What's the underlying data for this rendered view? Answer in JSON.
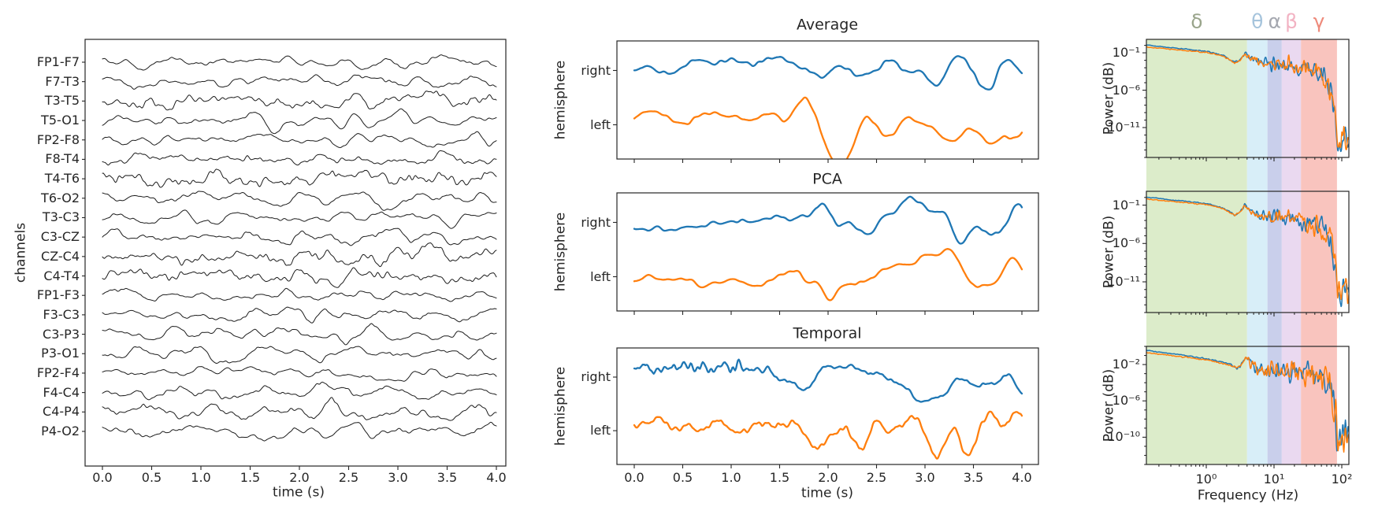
{
  "figure": {
    "bg": "#ffffff",
    "spine_color": "#262626",
    "text_color": "#262626"
  },
  "bands": [
    {
      "name": "delta",
      "symbol": "δ",
      "hz": [
        0.13,
        4
      ],
      "fill": "#dcecca",
      "label_color": "#9aa58c"
    },
    {
      "name": "theta",
      "symbol": "θ",
      "hz": [
        4,
        8
      ],
      "fill": "#d8eef8",
      "label_color": "#a6c4dc"
    },
    {
      "name": "alpha",
      "symbol": "α",
      "hz": [
        8,
        13
      ],
      "fill": "#c9cfeb",
      "label_color": "#a5a8b0"
    },
    {
      "name": "beta",
      "symbol": "β",
      "hz": [
        13,
        25
      ],
      "fill": "#ead9f0",
      "label_color": "#f2b3c3"
    },
    {
      "name": "gamma",
      "symbol": "γ",
      "hz": [
        25,
        85
      ],
      "fill": "#f9c4be",
      "label_color": "#ee8a7b"
    }
  ],
  "chart_data": [
    {
      "id": "eeg-channels",
      "type": "line",
      "xlabel": "time (s)",
      "ylabel": "channels",
      "x_range_s": [
        0,
        4
      ],
      "xticks": [
        "0.0",
        "0.5",
        "1.0",
        "1.5",
        "2.0",
        "2.5",
        "3.0",
        "3.5",
        "4.0"
      ],
      "line_color": "#1c1c1c",
      "default_env": [
        [
          0,
          0.85
        ],
        [
          1.4,
          0.95
        ],
        [
          1.9,
          1.2
        ],
        [
          2.7,
          1.25
        ],
        [
          3.3,
          1.05
        ],
        [
          4,
          0.95
        ]
      ],
      "channels": [
        {
          "label": "FP1-F7",
          "seed": 1,
          "amp": 3.7,
          "hf": 0.8
        },
        {
          "label": "F7-T3",
          "seed": 2,
          "amp": 3.8,
          "hf": 0.9
        },
        {
          "label": "T3-T5",
          "seed": 3,
          "amp": 4.9,
          "hf": 2.1
        },
        {
          "label": "T5-O1",
          "seed": 4,
          "amp": 4.7,
          "hf": 0.8
        },
        {
          "label": "FP2-F8",
          "seed": 5,
          "amp": 3.9,
          "hf": 0.8
        },
        {
          "label": "F8-T4",
          "seed": 6,
          "amp": 3.6,
          "hf": 1.3
        },
        {
          "label": "T4-T6",
          "seed": 7,
          "amp": 4.6,
          "hf": 2.3
        },
        {
          "label": "T6-O2",
          "seed": 8,
          "amp": 4.8,
          "hf": 0.9
        },
        {
          "label": "T3-C3",
          "seed": 9,
          "amp": 4.4,
          "hf": 0.9
        },
        {
          "label": "C3-CZ",
          "seed": 10,
          "amp": 4.4,
          "hf": 1.0
        },
        {
          "label": "CZ-C4",
          "seed": 11,
          "amp": 4.5,
          "hf": 2.0
        },
        {
          "label": "C4-T4",
          "seed": 12,
          "amp": 4.2,
          "hf": 1.9
        },
        {
          "label": "FP1-F3",
          "seed": 13,
          "amp": 3.7,
          "hf": 0.8
        },
        {
          "label": "F3-C3",
          "seed": 14,
          "amp": 4.1,
          "hf": 0.9
        },
        {
          "label": "C3-P3",
          "seed": 15,
          "amp": 4.5,
          "hf": 0.9
        },
        {
          "label": "P3-O1",
          "seed": 16,
          "amp": 5.3,
          "hf": 0.9
        },
        {
          "label": "FP2-F4",
          "seed": 17,
          "amp": 3.8,
          "hf": 0.9
        },
        {
          "label": "F4-C4",
          "seed": 18,
          "amp": 4.3,
          "hf": 1.0
        },
        {
          "label": "C4-P4",
          "seed": 19,
          "amp": 5.0,
          "hf": 1.4
        },
        {
          "label": "P4-O2",
          "seed": 20,
          "amp": 4.7,
          "hf": 0.9
        }
      ]
    },
    {
      "id": "average",
      "type": "line",
      "title": "Average",
      "ylabel": "hemisphere",
      "x_range_s": [
        0,
        4
      ],
      "yticks": [
        "right",
        "left"
      ],
      "series": [
        {
          "name": "right",
          "color": "#1f77b4",
          "seed": 31,
          "w": 16,
          "amp": 13,
          "hfamp": 1.6,
          "hfw": 4,
          "env": [
            [
              0,
              0.38
            ],
            [
              1.35,
              0.38
            ],
            [
              1.65,
              1
            ],
            [
              4,
              1
            ]
          ],
          "dc": [
            [
              0,
              -11
            ],
            [
              1.35,
              -9
            ],
            [
              1.7,
              3
            ],
            [
              4,
              3
            ]
          ]
        },
        {
          "name": "left",
          "color": "#ff7f0e",
          "seed": 52,
          "w": 16,
          "amp": 16,
          "hfamp": 1.4,
          "hfw": 4,
          "env": [
            [
              0,
              0.34
            ],
            [
              1.4,
              0.38
            ],
            [
              1.75,
              1.05
            ],
            [
              4,
              1.05
            ]
          ],
          "dc": [
            [
              0,
              -9
            ],
            [
              1.45,
              -7
            ],
            [
              1.8,
              4
            ],
            [
              4,
              5
            ]
          ]
        }
      ]
    },
    {
      "id": "pca",
      "type": "line",
      "title": "PCA",
      "ylabel": "hemisphere",
      "x_range_s": [
        0,
        4
      ],
      "yticks": [
        "right",
        "left"
      ],
      "series": [
        {
          "name": "right",
          "color": "#1f77b4",
          "seed": 33,
          "w": 15,
          "amp": 14,
          "hfamp": 1.2,
          "hfw": 4,
          "env": [
            [
              0,
              0.22
            ],
            [
              0.9,
              0.3
            ],
            [
              1.5,
              0.6
            ],
            [
              2.1,
              1
            ],
            [
              4,
              1.08
            ]
          ],
          "dc": [
            [
              0,
              5
            ],
            [
              1.5,
              2
            ],
            [
              2.2,
              -5
            ],
            [
              4,
              -7
            ]
          ]
        },
        {
          "name": "left",
          "color": "#ff7f0e",
          "seed": 54,
          "w": 15,
          "amp": 15,
          "hfamp": 1.2,
          "hfw": 4,
          "env": [
            [
              0,
              0.22
            ],
            [
              0.9,
              0.3
            ],
            [
              1.5,
              0.62
            ],
            [
              2.1,
              1
            ],
            [
              4,
              1.08
            ]
          ],
          "dc": [
            [
              0,
              6
            ],
            [
              1.5,
              3
            ],
            [
              2.2,
              -4
            ],
            [
              4,
              -6
            ]
          ]
        }
      ]
    },
    {
      "id": "temporal",
      "type": "line",
      "title": "Temporal",
      "ylabel": "hemisphere",
      "xlabel": "time (s)",
      "x_range_s": [
        0,
        4
      ],
      "xticks": [
        "0.0",
        "0.5",
        "1.0",
        "1.5",
        "2.0",
        "2.5",
        "3.0",
        "3.5",
        "4.0"
      ],
      "yticks": [
        "right",
        "left"
      ],
      "series": [
        {
          "name": "right",
          "color": "#1f77b4",
          "seed": 37,
          "w": 15,
          "amp": 13,
          "hfamp": 4,
          "hfw": 3,
          "env": [
            [
              0,
              0.12
            ],
            [
              1.35,
              0.12
            ],
            [
              1.65,
              1
            ],
            [
              4,
              1
            ]
          ],
          "hf_env": [
            [
              0,
              1
            ],
            [
              1.35,
              1
            ],
            [
              1.6,
              0.25
            ],
            [
              4,
              0.25
            ]
          ],
          "dc": [
            [
              0,
              -12
            ],
            [
              1.35,
              -12
            ],
            [
              1.7,
              4
            ],
            [
              4,
              4
            ]
          ]
        },
        {
          "name": "left",
          "color": "#ff7f0e",
          "seed": 58,
          "w": 15,
          "amp": 15,
          "hfamp": 2,
          "hfw": 3,
          "env": [
            [
              0,
              0.3
            ],
            [
              1.6,
              0.35
            ],
            [
              1.95,
              1.0
            ],
            [
              4,
              1.05
            ]
          ],
          "dc": [
            [
              0,
              -8
            ],
            [
              1.6,
              -6
            ],
            [
              2.05,
              5
            ],
            [
              4,
              5
            ]
          ]
        }
      ]
    },
    {
      "id": "psd-average",
      "type": "line",
      "ylabel": "Power (dB)",
      "xscale": "log",
      "yscale": "log",
      "xlim_log10_hz": [
        -0.884,
        2.105
      ],
      "ylim_log10": [
        0.8,
        -15
      ],
      "yticks": [
        {
          "label": "10⁻¹",
          "exp": -1
        },
        {
          "label": "10⁻⁶",
          "exp": -6
        },
        {
          "label": "10⁻¹¹",
          "exp": -11
        }
      ],
      "env": [
        [
          -0.884,
          -0.05
        ],
        [
          -0.4,
          -0.5
        ],
        [
          0,
          -0.85
        ],
        [
          0.25,
          -1.4
        ],
        [
          0.42,
          -2.3
        ],
        [
          0.5,
          -1.9
        ],
        [
          0.57,
          -1.0
        ],
        [
          0.63,
          -1.5
        ],
        [
          0.7,
          -1.9
        ],
        [
          0.78,
          -2.4
        ],
        [
          0.9,
          -2.5
        ],
        [
          1.0,
          -2.45
        ],
        [
          1.11,
          -2.55
        ],
        [
          1.25,
          -2.8
        ],
        [
          1.4,
          -3.0
        ],
        [
          1.55,
          -3.4
        ],
        [
          1.7,
          -4.2
        ],
        [
          1.8,
          -5.0
        ],
        [
          1.86,
          -6.5
        ],
        [
          1.9,
          -9.5
        ],
        [
          1.94,
          -12.5
        ],
        [
          1.99,
          -13.2
        ],
        [
          2.04,
          -12.2
        ],
        [
          2.105,
          -12.6
        ]
      ],
      "jit": [
        [
          -0.884,
          0.02
        ],
        [
          0.3,
          0.04
        ],
        [
          0.55,
          0.1
        ],
        [
          0.7,
          0.25
        ],
        [
          0.9,
          0.4
        ],
        [
          1.2,
          0.5
        ],
        [
          1.5,
          0.6
        ],
        [
          1.75,
          0.7
        ],
        [
          1.88,
          0.9
        ],
        [
          2.0,
          1.1
        ],
        [
          2.105,
          0.9
        ]
      ],
      "series": [
        {
          "name": "right",
          "color": "#1f77b4",
          "seed": 71,
          "dy": [
            [
              -0.884,
              0.1
            ],
            [
              0.3,
              0.04
            ],
            [
              0.6,
              0
            ],
            [
              2.105,
              0
            ]
          ]
        },
        {
          "name": "left",
          "color": "#ff7f0e",
          "seed": 72,
          "dy": [
            [
              -0.884,
              -0.18
            ],
            [
              0.3,
              -0.06
            ],
            [
              0.6,
              0
            ],
            [
              2.105,
              0
            ]
          ]
        }
      ]
    },
    {
      "id": "psd-pca",
      "type": "line",
      "ylabel": "Power (dB)",
      "xscale": "log",
      "yscale": "log",
      "xlim_log10_hz": [
        -0.884,
        2.105
      ],
      "ylim_log10": [
        0.8,
        -15
      ],
      "yticks": [
        {
          "label": "10⁻¹",
          "exp": -1
        },
        {
          "label": "10⁻⁶",
          "exp": -6
        },
        {
          "label": "10⁻¹¹",
          "exp": -11
        }
      ],
      "env": [
        [
          -0.884,
          -0.05
        ],
        [
          -0.4,
          -0.5
        ],
        [
          0,
          -0.85
        ],
        [
          0.25,
          -1.4
        ],
        [
          0.42,
          -2.3
        ],
        [
          0.5,
          -1.9
        ],
        [
          0.57,
          -1.0
        ],
        [
          0.63,
          -1.5
        ],
        [
          0.7,
          -1.9
        ],
        [
          0.78,
          -2.4
        ],
        [
          0.9,
          -2.5
        ],
        [
          1.0,
          -2.45
        ],
        [
          1.11,
          -2.55
        ],
        [
          1.25,
          -2.8
        ],
        [
          1.4,
          -3.0
        ],
        [
          1.55,
          -3.4
        ],
        [
          1.7,
          -4.2
        ],
        [
          1.8,
          -5.0
        ],
        [
          1.86,
          -6.5
        ],
        [
          1.9,
          -9.5
        ],
        [
          1.94,
          -12.5
        ],
        [
          1.99,
          -13.2
        ],
        [
          2.04,
          -12.2
        ],
        [
          2.105,
          -12.6
        ]
      ],
      "jit": [
        [
          -0.884,
          0.02
        ],
        [
          0.3,
          0.04
        ],
        [
          0.55,
          0.1
        ],
        [
          0.7,
          0.25
        ],
        [
          0.9,
          0.4
        ],
        [
          1.2,
          0.5
        ],
        [
          1.5,
          0.6
        ],
        [
          1.75,
          0.7
        ],
        [
          1.88,
          0.9
        ],
        [
          2.0,
          1.1
        ],
        [
          2.105,
          0.9
        ]
      ],
      "series": [
        {
          "name": "right",
          "color": "#1f77b4",
          "seed": 73,
          "dy": [
            [
              -0.884,
              0.1
            ],
            [
              0.3,
              0.04
            ],
            [
              0.6,
              0
            ],
            [
              2.105,
              0
            ]
          ]
        },
        {
          "name": "left",
          "color": "#ff7f0e",
          "seed": 74,
          "dy": [
            [
              -0.884,
              -0.15
            ],
            [
              0.3,
              -0.05
            ],
            [
              0.6,
              0
            ],
            [
              2.105,
              0
            ]
          ]
        }
      ]
    },
    {
      "id": "psd-temporal",
      "type": "line",
      "ylabel": "Power (dB)",
      "xlabel": "Frequency (Hz)",
      "xscale": "log",
      "yscale": "log",
      "xlim_log10_hz": [
        -0.884,
        2.105
      ],
      "ylim_log10": [
        0,
        -13
      ],
      "xticks": [
        {
          "label": "10⁰",
          "exp": 0
        },
        {
          "label": "10¹",
          "exp": 1
        },
        {
          "label": "10²",
          "exp": 2
        }
      ],
      "yticks": [
        {
          "label": "10⁻²",
          "exp": -2
        },
        {
          "label": "10⁻⁶",
          "exp": -6
        },
        {
          "label": "10⁻¹⁰",
          "exp": -10
        }
      ],
      "env": [
        [
          -0.884,
          -0.55
        ],
        [
          -0.4,
          -1.0
        ],
        [
          0,
          -1.4
        ],
        [
          0.3,
          -1.9
        ],
        [
          0.45,
          -2.4
        ],
        [
          0.5,
          -2.2
        ],
        [
          0.57,
          -1.4
        ],
        [
          0.65,
          -1.9
        ],
        [
          0.78,
          -2.6
        ],
        [
          0.9,
          -2.5
        ],
        [
          1.05,
          -2.45
        ],
        [
          1.2,
          -2.6
        ],
        [
          1.35,
          -2.8
        ],
        [
          1.5,
          -3.0
        ],
        [
          1.65,
          -3.3
        ],
        [
          1.78,
          -3.8
        ],
        [
          1.85,
          -4.6
        ],
        [
          1.9,
          -7.5
        ],
        [
          1.95,
          -10.3
        ],
        [
          2.0,
          -11
        ],
        [
          2.05,
          -9.8
        ],
        [
          2.105,
          -10.3
        ]
      ],
      "jit": [
        [
          -0.884,
          0.02
        ],
        [
          0.3,
          0.04
        ],
        [
          0.55,
          0.12
        ],
        [
          0.7,
          0.3
        ],
        [
          0.9,
          0.45
        ],
        [
          1.2,
          0.55
        ],
        [
          1.5,
          0.65
        ],
        [
          1.78,
          0.75
        ],
        [
          1.9,
          0.95
        ],
        [
          2.105,
          0.85
        ]
      ],
      "series": [
        {
          "name": "right",
          "color": "#1f77b4",
          "seed": 75,
          "dy": [
            [
              -0.884,
              0.12
            ],
            [
              0.3,
              0.05
            ],
            [
              0.6,
              0
            ],
            [
              2.105,
              0
            ]
          ]
        },
        {
          "name": "left",
          "color": "#ff7f0e",
          "seed": 76,
          "dy": [
            [
              -0.884,
              -0.15
            ],
            [
              0.3,
              -0.05
            ],
            [
              0.6,
              0
            ],
            [
              2.105,
              0
            ]
          ]
        }
      ]
    }
  ]
}
